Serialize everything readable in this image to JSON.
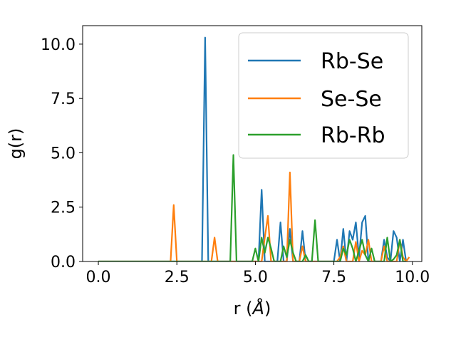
{
  "chart_data": {
    "type": "line",
    "title": "",
    "xlabel": "r (",
    "xlabel_unit": "Å",
    "xlabel_close": ")",
    "ylabel": "g(r)",
    "xlim": [
      -0.5,
      10.3
    ],
    "ylim": [
      0,
      10.85
    ],
    "xticks": [
      0.0,
      2.5,
      5.0,
      7.5,
      10.0
    ],
    "xtick_labels": [
      "0.0",
      "2.5",
      "5.0",
      "7.5",
      "10.0"
    ],
    "yticks": [
      0.0,
      2.5,
      5.0,
      7.5,
      10.0
    ],
    "ytick_labels": [
      "0.0",
      "2.5",
      "5.0",
      "7.5",
      "10.0"
    ],
    "grid": false,
    "legend_position": "top-right",
    "series": [
      {
        "name": "Rb-Se",
        "color": "#1f77b4",
        "points": [
          [
            0,
            0
          ],
          [
            3.3,
            0
          ],
          [
            3.4,
            10.3
          ],
          [
            3.5,
            0
          ],
          [
            5.1,
            0
          ],
          [
            5.2,
            3.3
          ],
          [
            5.3,
            0
          ],
          [
            5.7,
            0
          ],
          [
            5.8,
            1.8
          ],
          [
            5.9,
            0
          ],
          [
            6.0,
            0
          ],
          [
            6.1,
            1.5
          ],
          [
            6.2,
            0
          ],
          [
            6.4,
            0
          ],
          [
            6.5,
            1.4
          ],
          [
            6.6,
            0
          ],
          [
            7.5,
            0
          ],
          [
            7.6,
            1.0
          ],
          [
            7.7,
            0
          ],
          [
            7.8,
            1.5
          ],
          [
            7.9,
            0
          ],
          [
            8.0,
            1.4
          ],
          [
            8.1,
            1.0
          ],
          [
            8.2,
            1.8
          ],
          [
            8.3,
            0.2
          ],
          [
            8.4,
            1.8
          ],
          [
            8.5,
            2.1
          ],
          [
            8.6,
            0
          ],
          [
            9.0,
            0
          ],
          [
            9.1,
            1.0
          ],
          [
            9.2,
            0.2
          ],
          [
            9.3,
            0
          ],
          [
            9.4,
            1.4
          ],
          [
            9.5,
            1.1
          ],
          [
            9.6,
            0
          ],
          [
            9.7,
            1.0
          ],
          [
            9.8,
            0
          ]
        ]
      },
      {
        "name": "Se-Se",
        "color": "#ff7f0e",
        "points": [
          [
            0,
            0
          ],
          [
            2.3,
            0
          ],
          [
            2.4,
            2.6
          ],
          [
            2.5,
            0
          ],
          [
            3.6,
            0
          ],
          [
            3.7,
            1.1
          ],
          [
            3.8,
            0
          ],
          [
            5.2,
            0
          ],
          [
            5.3,
            1.1
          ],
          [
            5.4,
            2.1
          ],
          [
            5.5,
            0
          ],
          [
            6.0,
            0
          ],
          [
            6.1,
            4.1
          ],
          [
            6.2,
            0
          ],
          [
            6.4,
            0
          ],
          [
            6.5,
            0.7
          ],
          [
            6.6,
            0
          ],
          [
            7.6,
            0
          ],
          [
            7.7,
            0.2
          ],
          [
            7.8,
            0.7
          ],
          [
            7.9,
            0
          ],
          [
            8.1,
            0
          ],
          [
            8.2,
            0.9
          ],
          [
            8.3,
            0
          ],
          [
            8.4,
            0.5
          ],
          [
            8.5,
            0.3
          ],
          [
            8.6,
            1.0
          ],
          [
            8.7,
            0
          ],
          [
            9.0,
            0
          ],
          [
            9.1,
            0.7
          ],
          [
            9.2,
            0
          ],
          [
            9.5,
            0
          ],
          [
            9.6,
            1.0
          ],
          [
            9.7,
            0.2
          ],
          [
            9.8,
            0
          ],
          [
            9.9,
            0.2
          ]
        ]
      },
      {
        "name": "Rb-Rb",
        "color": "#2ca02c",
        "points": [
          [
            0,
            0
          ],
          [
            4.2,
            0
          ],
          [
            4.3,
            4.9
          ],
          [
            4.4,
            0
          ],
          [
            4.9,
            0
          ],
          [
            5.0,
            0.6
          ],
          [
            5.1,
            0
          ],
          [
            5.2,
            1.1
          ],
          [
            5.3,
            0.4
          ],
          [
            5.4,
            1.1
          ],
          [
            5.5,
            0.6
          ],
          [
            5.6,
            0
          ],
          [
            5.8,
            0
          ],
          [
            5.9,
            0.7
          ],
          [
            6.0,
            0.2
          ],
          [
            6.1,
            1.0
          ],
          [
            6.2,
            0.4
          ],
          [
            6.3,
            0
          ],
          [
            6.5,
            0
          ],
          [
            6.6,
            0.3
          ],
          [
            6.7,
            0
          ],
          [
            6.8,
            0
          ],
          [
            6.9,
            1.9
          ],
          [
            7.0,
            0
          ],
          [
            7.7,
            0
          ],
          [
            7.8,
            0.6
          ],
          [
            7.9,
            0.3
          ],
          [
            8.0,
            1.0
          ],
          [
            8.1,
            0.6
          ],
          [
            8.2,
            0
          ],
          [
            8.3,
            0.5
          ],
          [
            8.4,
            1.0
          ],
          [
            8.5,
            0.3
          ],
          [
            8.6,
            0
          ],
          [
            8.7,
            0.6
          ],
          [
            8.8,
            0
          ],
          [
            9.1,
            0
          ],
          [
            9.2,
            1.1
          ],
          [
            9.3,
            0
          ],
          [
            9.4,
            0.1
          ],
          [
            9.5,
            0.3
          ],
          [
            9.6,
            1.0
          ],
          [
            9.7,
            0
          ],
          [
            9.8,
            0
          ]
        ]
      }
    ]
  }
}
